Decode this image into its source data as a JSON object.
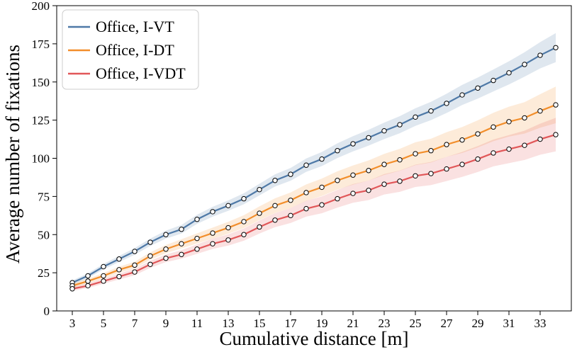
{
  "chart_data": {
    "type": "line",
    "title": "",
    "xlabel": "Cumulative distance [m]",
    "ylabel": "Average number of fixations",
    "xlim": [
      2,
      35
    ],
    "ylim": [
      0,
      200
    ],
    "xticks": [
      3,
      5,
      7,
      9,
      11,
      13,
      15,
      17,
      19,
      21,
      23,
      25,
      27,
      29,
      31,
      33
    ],
    "yticks": [
      0,
      25,
      50,
      75,
      100,
      125,
      150,
      175,
      200
    ],
    "x": [
      3,
      4,
      5,
      6,
      7,
      8,
      9,
      10,
      11,
      12,
      13,
      14,
      15,
      16,
      17,
      18,
      19,
      20,
      21,
      22,
      23,
      24,
      25,
      26,
      27,
      28,
      29,
      30,
      31,
      32,
      33,
      34
    ],
    "legend_position": "top-left",
    "series": [
      {
        "name": "Office, I-VT",
        "color": "#4e79a7",
        "values": [
          18.5,
          23,
          29,
          34,
          39,
          45,
          50,
          53.5,
          60,
          65,
          69,
          73.5,
          79.5,
          85.5,
          89.5,
          95.5,
          99.5,
          105,
          109.5,
          113.5,
          118,
          122,
          127,
          131,
          136,
          141.5,
          146,
          151,
          156,
          161.5,
          167.5,
          172.5
        ],
        "band_halfwidth": [
          1.5,
          1.6,
          1.8,
          2.0,
          2.2,
          2.4,
          2.6,
          2.8,
          3.0,
          3.2,
          3.4,
          3.6,
          3.8,
          4.0,
          4.2,
          4.4,
          4.6,
          4.8,
          5.0,
          5.2,
          5.4,
          5.6,
          5.8,
          6.0,
          6.3,
          6.6,
          6.9,
          7.2,
          7.6,
          8.0,
          8.6,
          9.5
        ]
      },
      {
        "name": "Office, I-DT",
        "color": "#f28e2b",
        "values": [
          16.5,
          19.5,
          23,
          27,
          30,
          36,
          40.5,
          44,
          47.5,
          51,
          54.5,
          58.5,
          64,
          69,
          72.5,
          77.5,
          81,
          85.5,
          89,
          92,
          96,
          99,
          103,
          105,
          109,
          112,
          116,
          120.5,
          124,
          126.5,
          131,
          135
        ],
        "band_halfwidth": [
          1.5,
          1.6,
          1.8,
          2.0,
          2.2,
          2.4,
          2.7,
          3.0,
          3.3,
          3.6,
          3.9,
          4.2,
          4.5,
          4.8,
          5.1,
          5.4,
          5.7,
          6.0,
          6.3,
          6.6,
          6.9,
          7.2,
          7.5,
          7.8,
          8.1,
          8.5,
          8.9,
          9.3,
          9.8,
          10.3,
          11.0,
          12.0
        ]
      },
      {
        "name": "Office, I-VDT",
        "color": "#e15759",
        "values": [
          14.5,
          16.5,
          19.5,
          22.5,
          25.5,
          30.5,
          34.5,
          37,
          40.5,
          44,
          46.5,
          50,
          55,
          59.5,
          62.5,
          67,
          69.5,
          73.5,
          77,
          79,
          83,
          85,
          88.5,
          90,
          93,
          96,
          99.5,
          103.5,
          106,
          108.5,
          112.5,
          115.5
        ],
        "band_halfwidth": [
          1.4,
          1.5,
          1.7,
          1.9,
          2.1,
          2.3,
          2.5,
          2.8,
          3.1,
          3.4,
          3.7,
          4.0,
          4.3,
          4.6,
          4.9,
          5.2,
          5.5,
          5.8,
          6.1,
          6.4,
          6.7,
          7.0,
          7.3,
          7.6,
          7.9,
          8.2,
          8.5,
          8.8,
          9.2,
          9.6,
          10.2,
          11.0
        ]
      }
    ]
  }
}
